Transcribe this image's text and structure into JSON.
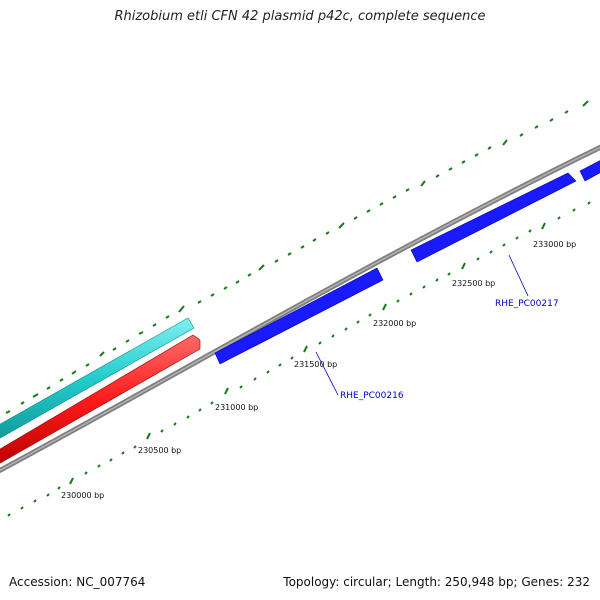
{
  "title": "Rhizobium etli CFN 42 plasmid p42c, complete sequence",
  "footer": {
    "accession": "Accession: NC_007764",
    "stats": "Topology: circular; Length: 250,948 bp; Genes: 232"
  },
  "colors": {
    "backbone": "#8a8a8a",
    "tick": "#1a7a1a",
    "cyan_feature": "#22cccc",
    "red_feature": "#ff1a1a",
    "gene": "#1a1aff",
    "gene_label": "#0000cc"
  },
  "ticks": {
    "labels": [
      "230000 bp",
      "230500 bp",
      "231000 bp",
      "231500 bp",
      "232000 bp",
      "232500 bp",
      "233000 bp"
    ]
  },
  "genes": [
    {
      "label": "RHE_PC00216"
    },
    {
      "label": "RHE_PC00217"
    }
  ]
}
